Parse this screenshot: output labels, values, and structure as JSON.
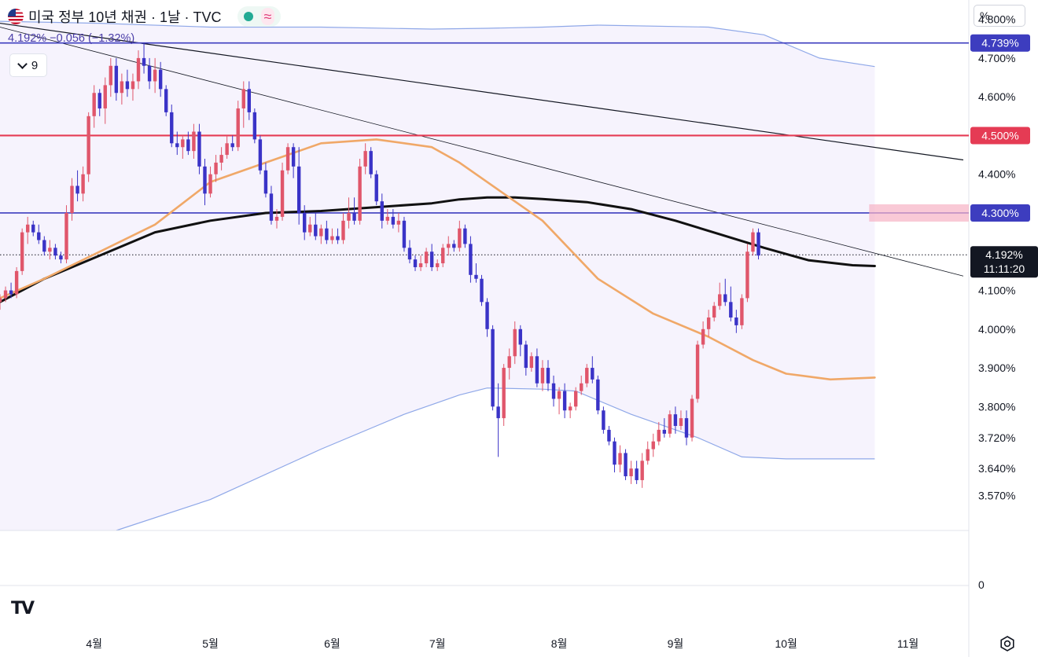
{
  "header": {
    "title": "미국 정부 10년 채권 · 1날 · TVC",
    "quote": "4.192% −0.056 (−1.32%)",
    "indicator_count": "9",
    "scale_unit": "%",
    "status_color": "#22ab94"
  },
  "price_tags": {
    "high_line": {
      "text": "4.739%",
      "color": "#3d3dbf"
    },
    "red_line": {
      "text": "4.500%",
      "color": "#e53b54"
    },
    "blue_line": {
      "text": "4.300%",
      "color": "#3d3dbf"
    },
    "last": {
      "price": "4.192%",
      "time": "11:11:20",
      "color": "#131722"
    }
  },
  "icons": {
    "logo": "tradingview-logo-icon",
    "settings": "settings-icon",
    "chevron": "chevron-down-icon"
  },
  "chart_data": {
    "type": "candlestick",
    "symbol": "미국 정부 10년 채권",
    "interval": "1날",
    "source": "TVC",
    "y_tick_labels": [
      "4.800%",
      "4.700%",
      "4.600%",
      "4.400%",
      "4.100%",
      "4.000%",
      "3.900%",
      "3.800%",
      "3.720%",
      "3.640%",
      "3.570%"
    ],
    "y_ticks": [
      4.8,
      4.7,
      4.6,
      4.4,
      4.1,
      4.0,
      3.9,
      3.8,
      3.72,
      3.64,
      3.57
    ],
    "ylim": [
      3.48,
      4.85
    ],
    "x_tick_labels": [
      "4월",
      "5월",
      "6월",
      "7월",
      "8월",
      "9월",
      "10월",
      "11월"
    ],
    "x_tick_positions": [
      19,
      40,
      62,
      81,
      103,
      124,
      144,
      166
    ],
    "x_range": [
      2,
      176
    ],
    "horizontal_lines": [
      {
        "value": 4.739,
        "color": "#3d3dbf"
      },
      {
        "value": 4.5,
        "color": "#e53b54"
      },
      {
        "value": 4.3,
        "color": "#3d3dbf"
      }
    ],
    "trend_lines": [
      {
        "points": [
          [
            2,
            4.79
          ],
          [
            176,
            4.437
          ]
        ],
        "color": "#131722"
      },
      {
        "points": [
          [
            2,
            4.78
          ],
          [
            176,
            4.137
          ]
        ],
        "color": "#131722"
      }
    ],
    "last_price": 4.192,
    "volume_pane_label": "0",
    "moving_averages": [
      {
        "color": "#111111",
        "points": [
          [
            2,
            4.07
          ],
          [
            10,
            4.13
          ],
          [
            20,
            4.19
          ],
          [
            30,
            4.25
          ],
          [
            40,
            4.28
          ],
          [
            50,
            4.3
          ],
          [
            60,
            4.305
          ],
          [
            70,
            4.315
          ],
          [
            80,
            4.325
          ],
          [
            85,
            4.335
          ],
          [
            90,
            4.34
          ],
          [
            95,
            4.34
          ],
          [
            100,
            4.336
          ],
          [
            108,
            4.328
          ],
          [
            116,
            4.31
          ],
          [
            124,
            4.28
          ],
          [
            132,
            4.245
          ],
          [
            140,
            4.21
          ],
          [
            148,
            4.178
          ],
          [
            156,
            4.165
          ],
          [
            160,
            4.163
          ]
        ]
      },
      {
        "color": "#f0a868",
        "points": [
          [
            2,
            4.08
          ],
          [
            10,
            4.13
          ],
          [
            20,
            4.2
          ],
          [
            30,
            4.27
          ],
          [
            40,
            4.38
          ],
          [
            50,
            4.43
          ],
          [
            60,
            4.48
          ],
          [
            70,
            4.49
          ],
          [
            80,
            4.47
          ],
          [
            85,
            4.43
          ],
          [
            90,
            4.38
          ],
          [
            100,
            4.28
          ],
          [
            110,
            4.13
          ],
          [
            120,
            4.04
          ],
          [
            130,
            3.98
          ],
          [
            138,
            3.92
          ],
          [
            144,
            3.885
          ],
          [
            152,
            3.87
          ],
          [
            160,
            3.875
          ]
        ]
      }
    ],
    "bollinger": {
      "color": "#8fa8e8",
      "upper": [
        [
          2,
          4.795
        ],
        [
          20,
          4.79
        ],
        [
          40,
          4.78
        ],
        [
          60,
          4.78
        ],
        [
          80,
          4.775
        ],
        [
          90,
          4.777
        ],
        [
          100,
          4.78
        ],
        [
          110,
          4.785
        ],
        [
          130,
          4.78
        ],
        [
          140,
          4.76
        ],
        [
          150,
          4.7
        ],
        [
          160,
          4.678
        ]
      ],
      "lower": [
        [
          23,
          3.48
        ],
        [
          40,
          3.56
        ],
        [
          60,
          3.69
        ],
        [
          75,
          3.78
        ],
        [
          85,
          3.83
        ],
        [
          90,
          3.848
        ],
        [
          100,
          3.845
        ],
        [
          106,
          3.84
        ],
        [
          116,
          3.78
        ],
        [
          128,
          3.72
        ],
        [
          136,
          3.67
        ],
        [
          144,
          3.665
        ],
        [
          160,
          3.665
        ]
      ]
    },
    "candles": [
      [
        2,
        4.07,
        4.09,
        4.05,
        4.08
      ],
      [
        3,
        4.08,
        4.11,
        4.07,
        4.1
      ],
      [
        4,
        4.1,
        4.12,
        4.08,
        4.09
      ],
      [
        5,
        4.09,
        4.16,
        4.08,
        4.15
      ],
      [
        6,
        4.15,
        4.26,
        4.14,
        4.25
      ],
      [
        7,
        4.25,
        4.29,
        4.22,
        4.27
      ],
      [
        8,
        4.27,
        4.28,
        4.24,
        4.25
      ],
      [
        9,
        4.25,
        4.27,
        4.22,
        4.23
      ],
      [
        10,
        4.23,
        4.24,
        4.19,
        4.2
      ],
      [
        11,
        4.2,
        4.23,
        4.18,
        4.21
      ],
      [
        12,
        4.21,
        4.22,
        4.18,
        4.19
      ],
      [
        13,
        4.19,
        4.2,
        4.17,
        4.18
      ],
      [
        14,
        4.18,
        4.32,
        4.17,
        4.3
      ],
      [
        15,
        4.3,
        4.39,
        4.28,
        4.37
      ],
      [
        16,
        4.37,
        4.41,
        4.33,
        4.35
      ],
      [
        17,
        4.35,
        4.42,
        4.33,
        4.4
      ],
      [
        18,
        4.4,
        4.56,
        4.38,
        4.55
      ],
      [
        19,
        4.55,
        4.63,
        4.52,
        4.61
      ],
      [
        20,
        4.61,
        4.62,
        4.55,
        4.57
      ],
      [
        21,
        4.57,
        4.65,
        4.53,
        4.63
      ],
      [
        22,
        4.63,
        4.7,
        4.6,
        4.68
      ],
      [
        23,
        4.68,
        4.7,
        4.59,
        4.61
      ],
      [
        24,
        4.61,
        4.66,
        4.58,
        4.64
      ],
      [
        25,
        4.64,
        4.67,
        4.6,
        4.62
      ],
      [
        26,
        4.62,
        4.66,
        4.59,
        4.64
      ],
      [
        27,
        4.64,
        4.72,
        4.62,
        4.7
      ],
      [
        28,
        4.7,
        4.74,
        4.66,
        4.68
      ],
      [
        29,
        4.68,
        4.7,
        4.62,
        4.64
      ],
      [
        30,
        4.64,
        4.7,
        4.61,
        4.67
      ],
      [
        31,
        4.67,
        4.69,
        4.6,
        4.62
      ],
      [
        32,
        4.62,
        4.63,
        4.55,
        4.56
      ],
      [
        33,
        4.56,
        4.58,
        4.47,
        4.48
      ],
      [
        34,
        4.48,
        4.51,
        4.45,
        4.47
      ],
      [
        35,
        4.47,
        4.5,
        4.44,
        4.49
      ],
      [
        36,
        4.49,
        4.51,
        4.45,
        4.46
      ],
      [
        37,
        4.46,
        4.53,
        4.44,
        4.51
      ],
      [
        38,
        4.51,
        4.53,
        4.4,
        4.42
      ],
      [
        39,
        4.42,
        4.44,
        4.32,
        4.35
      ],
      [
        40,
        4.35,
        4.42,
        4.34,
        4.4
      ],
      [
        41,
        4.4,
        4.45,
        4.38,
        4.43
      ],
      [
        42,
        4.43,
        4.47,
        4.41,
        4.45
      ],
      [
        43,
        4.45,
        4.5,
        4.44,
        4.48
      ],
      [
        44,
        4.48,
        4.5,
        4.46,
        4.47
      ],
      [
        45,
        4.47,
        4.59,
        4.46,
        4.57
      ],
      [
        46,
        4.57,
        4.64,
        4.52,
        4.62
      ],
      [
        47,
        4.62,
        4.64,
        4.54,
        4.56
      ],
      [
        48,
        4.56,
        4.57,
        4.48,
        4.49
      ],
      [
        49,
        4.49,
        4.5,
        4.4,
        4.41
      ],
      [
        50,
        4.41,
        4.43,
        4.34,
        4.35
      ],
      [
        51,
        4.35,
        4.37,
        4.27,
        4.28
      ],
      [
        52,
        4.28,
        4.31,
        4.26,
        4.29
      ],
      [
        53,
        4.29,
        4.43,
        4.28,
        4.41
      ],
      [
        54,
        4.41,
        4.48,
        4.4,
        4.47
      ],
      [
        55,
        4.47,
        4.48,
        4.39,
        4.42
      ],
      [
        56,
        4.42,
        4.47,
        4.27,
        4.3
      ],
      [
        57,
        4.3,
        4.32,
        4.23,
        4.25
      ],
      [
        58,
        4.25,
        4.29,
        4.24,
        4.27
      ],
      [
        59,
        4.27,
        4.3,
        4.23,
        4.24
      ],
      [
        60,
        4.24,
        4.27,
        4.22,
        4.26
      ],
      [
        61,
        4.26,
        4.28,
        4.22,
        4.23
      ],
      [
        62,
        4.23,
        4.26,
        4.22,
        4.24
      ],
      [
        63,
        4.24,
        4.26,
        4.22,
        4.23
      ],
      [
        64,
        4.23,
        4.3,
        4.22,
        4.28
      ],
      [
        65,
        4.28,
        4.34,
        4.26,
        4.3
      ],
      [
        66,
        4.3,
        4.34,
        4.27,
        4.28
      ],
      [
        67,
        4.28,
        4.44,
        4.27,
        4.42
      ],
      [
        68,
        4.42,
        4.48,
        4.4,
        4.46
      ],
      [
        69,
        4.46,
        4.47,
        4.39,
        4.4
      ],
      [
        70,
        4.4,
        4.41,
        4.32,
        4.33
      ],
      [
        71,
        4.33,
        4.35,
        4.26,
        4.28
      ],
      [
        72,
        4.28,
        4.31,
        4.27,
        4.29
      ],
      [
        73,
        4.29,
        4.31,
        4.26,
        4.27
      ],
      [
        74,
        4.27,
        4.3,
        4.25,
        4.28
      ],
      [
        75,
        4.28,
        4.29,
        4.2,
        4.21
      ],
      [
        76,
        4.21,
        4.23,
        4.17,
        4.18
      ],
      [
        77,
        4.18,
        4.19,
        4.15,
        4.16
      ],
      [
        78,
        4.16,
        4.19,
        4.15,
        4.17
      ],
      [
        79,
        4.17,
        4.21,
        4.16,
        4.2
      ],
      [
        80,
        4.2,
        4.22,
        4.15,
        4.16
      ],
      [
        81,
        4.16,
        4.18,
        4.15,
        4.17
      ],
      [
        82,
        4.17,
        4.22,
        4.16,
        4.21
      ],
      [
        83,
        4.21,
        4.24,
        4.19,
        4.22
      ],
      [
        84,
        4.22,
        4.23,
        4.2,
        4.21
      ],
      [
        85,
        4.21,
        4.28,
        4.2,
        4.26
      ],
      [
        86,
        4.26,
        4.27,
        4.21,
        4.22
      ],
      [
        87,
        4.22,
        4.24,
        4.12,
        4.14
      ],
      [
        88,
        4.14,
        4.17,
        4.12,
        4.13
      ],
      [
        89,
        4.13,
        4.14,
        4.06,
        4.07
      ],
      [
        90,
        4.07,
        4.08,
        3.98,
        4.0
      ],
      [
        91,
        4.0,
        4.01,
        3.79,
        3.8
      ],
      [
        92,
        3.8,
        3.86,
        3.67,
        3.77
      ],
      [
        93,
        3.77,
        3.91,
        3.75,
        3.9
      ],
      [
        94,
        3.9,
        3.95,
        3.87,
        3.93
      ],
      [
        95,
        3.93,
        4.02,
        3.91,
        4.0
      ],
      [
        96,
        4.0,
        4.01,
        3.93,
        3.96
      ],
      [
        97,
        3.96,
        3.97,
        3.88,
        3.9
      ],
      [
        98,
        3.9,
        3.94,
        3.89,
        3.93
      ],
      [
        99,
        3.93,
        3.95,
        3.85,
        3.86
      ],
      [
        100,
        3.86,
        3.92,
        3.84,
        3.9
      ],
      [
        101,
        3.9,
        3.92,
        3.84,
        3.86
      ],
      [
        102,
        3.86,
        3.88,
        3.8,
        3.82
      ],
      [
        103,
        3.82,
        3.85,
        3.78,
        3.84
      ],
      [
        104,
        3.84,
        3.86,
        3.77,
        3.79
      ],
      [
        105,
        3.79,
        3.81,
        3.77,
        3.8
      ],
      [
        106,
        3.8,
        3.85,
        3.79,
        3.84
      ],
      [
        107,
        3.84,
        3.88,
        3.83,
        3.86
      ],
      [
        108,
        3.86,
        3.91,
        3.85,
        3.9
      ],
      [
        109,
        3.9,
        3.93,
        3.86,
        3.87
      ],
      [
        110,
        3.87,
        3.88,
        3.78,
        3.79
      ],
      [
        111,
        3.79,
        3.8,
        3.73,
        3.74
      ],
      [
        112,
        3.74,
        3.75,
        3.7,
        3.71
      ],
      [
        113,
        3.71,
        3.72,
        3.63,
        3.65
      ],
      [
        114,
        3.65,
        3.7,
        3.63,
        3.68
      ],
      [
        115,
        3.68,
        3.69,
        3.61,
        3.62
      ],
      [
        116,
        3.62,
        3.66,
        3.6,
        3.64
      ],
      [
        117,
        3.64,
        3.66,
        3.6,
        3.61
      ],
      [
        118,
        3.61,
        3.68,
        3.59,
        3.66
      ],
      [
        119,
        3.66,
        3.71,
        3.65,
        3.69
      ],
      [
        120,
        3.69,
        3.73,
        3.67,
        3.71
      ],
      [
        121,
        3.71,
        3.76,
        3.7,
        3.74
      ],
      [
        122,
        3.74,
        3.77,
        3.72,
        3.73
      ],
      [
        123,
        3.73,
        3.79,
        3.72,
        3.78
      ],
      [
        124,
        3.78,
        3.8,
        3.73,
        3.75
      ],
      [
        125,
        3.75,
        3.79,
        3.74,
        3.77
      ],
      [
        126,
        3.77,
        3.79,
        3.7,
        3.72
      ],
      [
        127,
        3.72,
        3.83,
        3.71,
        3.82
      ],
      [
        128,
        3.82,
        3.97,
        3.81,
        3.96
      ],
      [
        129,
        3.96,
        4.02,
        3.95,
        4.0
      ],
      [
        130,
        4.0,
        4.05,
        3.98,
        4.03
      ],
      [
        131,
        4.03,
        4.07,
        4.02,
        4.06
      ],
      [
        132,
        4.06,
        4.12,
        4.05,
        4.09
      ],
      [
        133,
        4.09,
        4.13,
        4.06,
        4.07
      ],
      [
        134,
        4.07,
        4.11,
        4.02,
        4.03
      ],
      [
        135,
        4.03,
        4.05,
        3.99,
        4.01
      ],
      [
        136,
        4.01,
        4.09,
        4.0,
        4.08
      ],
      [
        137,
        4.08,
        4.22,
        4.07,
        4.2
      ],
      [
        138,
        4.2,
        4.26,
        4.19,
        4.25
      ],
      [
        139,
        4.25,
        4.26,
        4.18,
        4.19
      ]
    ]
  }
}
